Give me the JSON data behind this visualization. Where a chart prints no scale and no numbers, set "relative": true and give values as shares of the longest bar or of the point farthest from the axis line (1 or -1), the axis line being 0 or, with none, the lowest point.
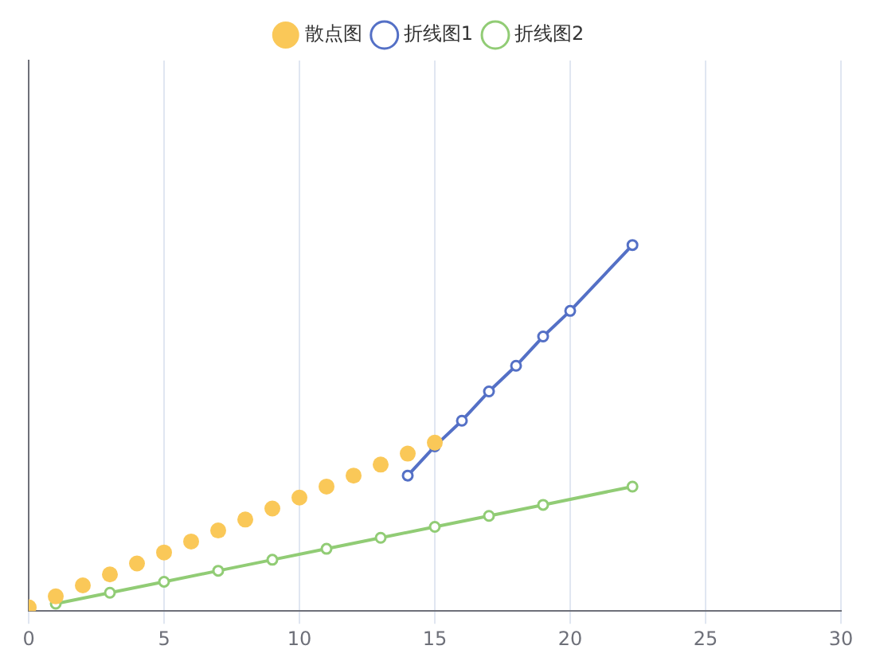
{
  "chart_data": {
    "type": "line",
    "relative": true,
    "xlim": [
      0,
      30
    ],
    "xticks": [
      0,
      5,
      10,
      15,
      20,
      25,
      30
    ],
    "grid": "x",
    "legend": "top",
    "marker": "circle",
    "series": [
      {
        "name": "折线图1",
        "color": "#5470c6",
        "x": [
          14,
          15,
          16,
          17,
          18,
          19,
          20,
          22.3
        ],
        "values": [
          0.37,
          0.45,
          0.52,
          0.6,
          0.67,
          0.75,
          0.82,
          1
        ]
      },
      {
        "name": "折线图2",
        "color": "#91cc75",
        "x": [
          1,
          3,
          5,
          7,
          9,
          11,
          13,
          15,
          17,
          19,
          22.3
        ],
        "values": [
          0.02,
          0.05,
          0.08,
          0.11,
          0.14,
          0.17,
          0.2,
          0.23,
          0.26,
          0.29,
          0.34
        ]
      },
      {
        "name": "散点图",
        "type": "scatter",
        "color": "#fac858",
        "x": [
          0,
          1,
          2,
          3,
          4,
          5,
          6,
          7,
          8,
          9,
          10,
          11,
          12,
          13,
          14,
          15
        ],
        "values": [
          0.01,
          0.04,
          0.07,
          0.1,
          0.13,
          0.16,
          0.19,
          0.22,
          0.25,
          0.28,
          0.31,
          0.34,
          0.37,
          0.4,
          0.43,
          0.46
        ]
      }
    ]
  }
}
